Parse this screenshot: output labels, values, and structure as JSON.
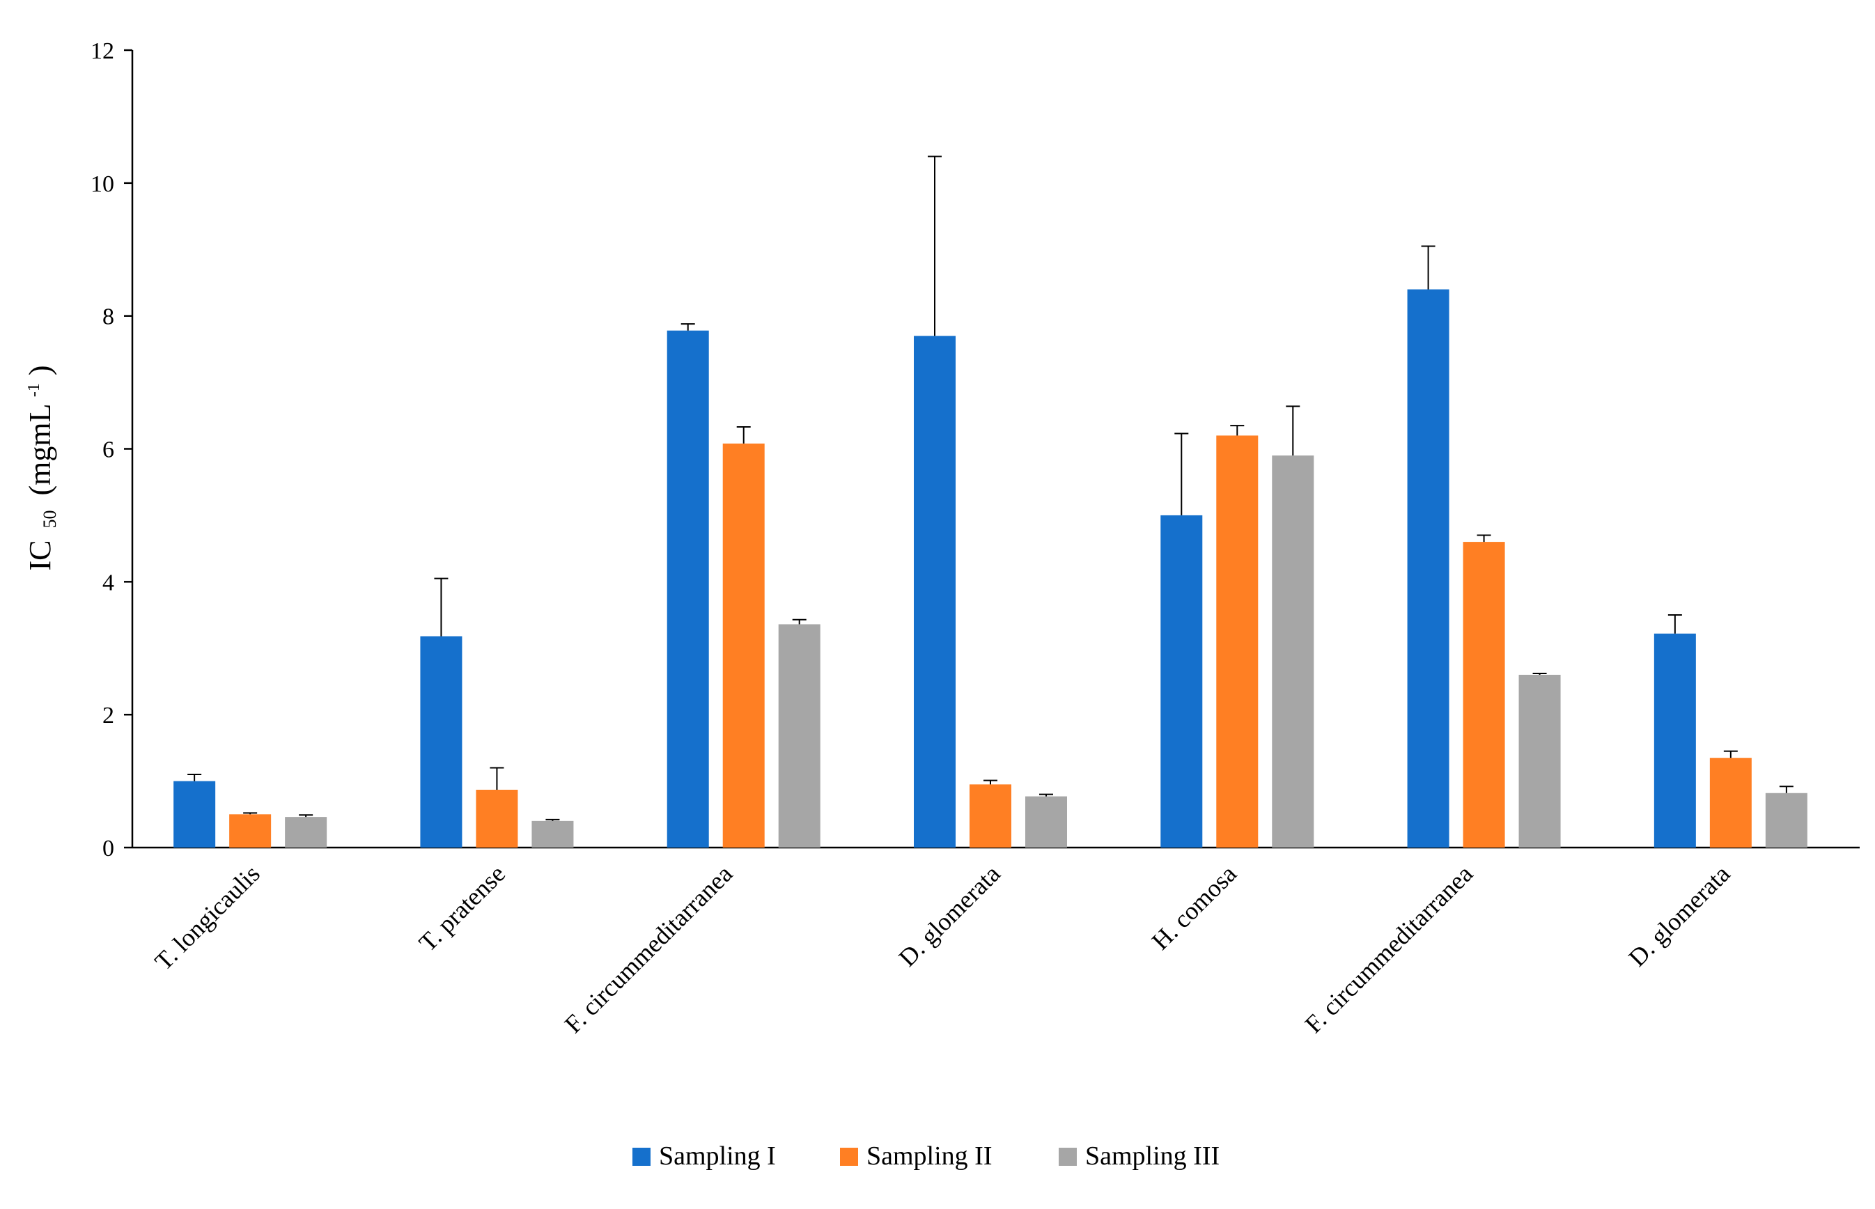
{
  "chart_data": {
    "type": "bar",
    "title": "",
    "xlabel": "",
    "ylabel": "IC",
    "ylabel_sub": "50",
    "ylabel_unit": "(mgmL",
    "ylabel_unit_sup": "-1",
    "ylabel_unit_close": ")",
    "ylim": [
      0,
      12
    ],
    "yticks": [
      0,
      2,
      4,
      6,
      8,
      10,
      12
    ],
    "grid": false,
    "legend_position": "bottom-center",
    "categories": [
      "T. longicaulis",
      "T. pratense",
      "F. circummeditarranea",
      "D. glomerata",
      "H. comosa",
      "F. circummeditarranea",
      "D. glomerata"
    ],
    "series": [
      {
        "name": "Sampling I",
        "color": "#1570CC",
        "values": [
          1.0,
          3.18,
          7.78,
          7.7,
          5.0,
          8.4,
          3.22
        ],
        "errors": [
          0.1,
          0.87,
          0.1,
          2.7,
          1.23,
          0.65,
          0.28
        ]
      },
      {
        "name": "Sampling II",
        "color": "#FF7F23",
        "values": [
          0.5,
          0.87,
          6.08,
          0.95,
          6.2,
          4.6,
          1.35
        ],
        "errors": [
          0.02,
          0.33,
          0.25,
          0.06,
          0.15,
          0.1,
          0.1
        ]
      },
      {
        "name": "Sampling III",
        "color": "#A6A6A6",
        "values": [
          0.46,
          0.4,
          3.36,
          0.77,
          5.9,
          2.6,
          0.82
        ],
        "errors": [
          0.03,
          0.02,
          0.07,
          0.03,
          0.74,
          0.02,
          0.1
        ]
      }
    ]
  }
}
